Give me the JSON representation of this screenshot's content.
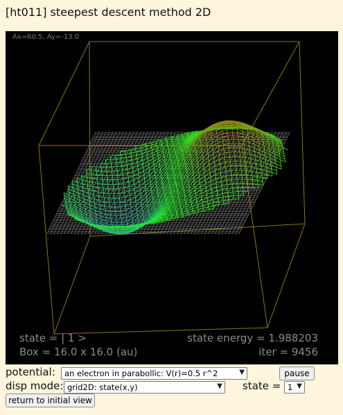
{
  "page": {
    "title": "[ht011] steepest descent method 2D"
  },
  "viewport": {
    "angle_readout": "Ax=60.5, Ay=-13.0",
    "state_label": "state = | 1 >",
    "box_label": "Box = 16.0 x 16.0 (au)",
    "energy_label": "state energy = 1.988203",
    "iter_label": "iter = 9456",
    "colors": {
      "box_edge": "#8a7a10",
      "grid": "#8c8c8c",
      "surface_low": "#2f6cff",
      "surface_mid": "#22ee22",
      "surface_high": "#ff2a00"
    }
  },
  "controls": {
    "potential_label": "potential:",
    "potential_value": "an electron in parabollic: V(r)=0.5 r^2",
    "pause_label": "pause",
    "disp_mode_label": "disp mode:",
    "disp_mode_value": "grid2D: state(x,y)",
    "state_label": "state =",
    "state_value": "1",
    "reset_view_label": "return to initial view",
    "dropdown_icon": "chevron-down-icon"
  }
}
